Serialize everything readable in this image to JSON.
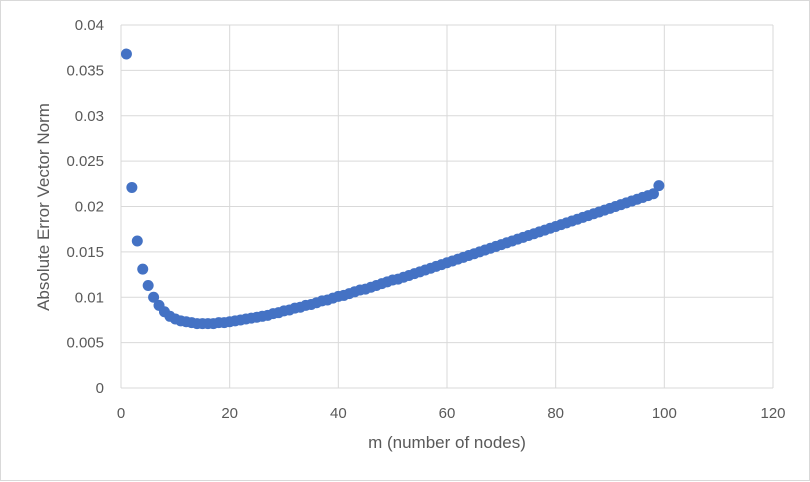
{
  "chart_data": {
    "type": "scatter",
    "title": "",
    "xlabel": "m (number of nodes)",
    "ylabel": "Absolute Error Vector Norm",
    "xlim": [
      0,
      120
    ],
    "ylim": [
      0,
      0.04
    ],
    "x_ticks": [
      "0",
      "20",
      "40",
      "60",
      "80",
      "100",
      "120"
    ],
    "y_ticks": [
      "0",
      "0.005",
      "0.01",
      "0.015",
      "0.02",
      "0.025",
      "0.03",
      "0.035",
      "0.04"
    ],
    "grid": true,
    "legend": "none",
    "marker_color": "#4472C4",
    "series": [
      {
        "x": [
          1,
          2,
          3,
          4,
          5,
          6,
          7,
          8,
          9,
          10,
          11,
          12,
          13,
          14,
          15,
          16,
          17,
          18,
          19,
          20,
          21,
          22,
          23,
          24,
          25,
          26,
          27,
          28,
          29,
          30,
          31,
          32,
          33,
          34,
          35,
          36,
          37,
          38,
          39,
          40,
          41,
          42,
          43,
          44,
          45,
          46,
          47,
          48,
          49,
          50,
          51,
          52,
          53,
          54,
          55,
          56,
          57,
          58,
          59,
          60,
          61,
          62,
          63,
          64,
          65,
          66,
          67,
          68,
          69,
          70,
          71,
          72,
          73,
          74,
          75,
          76,
          77,
          78,
          79,
          80,
          81,
          82,
          83,
          84,
          85,
          86,
          87,
          88,
          89,
          90,
          91,
          92,
          93,
          94,
          95,
          96,
          97,
          98,
          99
        ],
        "y": [
          0.0368,
          0.0221,
          0.0162,
          0.0131,
          0.0113,
          0.01,
          0.0091,
          0.0084,
          0.0079,
          0.0076,
          0.0074,
          0.0073,
          0.0072,
          0.0071,
          0.0071,
          0.0071,
          0.0071,
          0.0072,
          0.0072,
          0.0073,
          0.0074,
          0.0075,
          0.0076,
          0.0077,
          0.0078,
          0.0079,
          0.008,
          0.0082,
          0.0083,
          0.0085,
          0.0086,
          0.0088,
          0.0089,
          0.0091,
          0.0092,
          0.0094,
          0.0096,
          0.0097,
          0.0099,
          0.0101,
          0.0102,
          0.0104,
          0.0106,
          0.0108,
          0.0109,
          0.0111,
          0.0113,
          0.0115,
          0.0117,
          0.0119,
          0.012,
          0.0122,
          0.0124,
          0.0126,
          0.0128,
          0.013,
          0.0132,
          0.0134,
          0.0136,
          0.0138,
          0.014,
          0.0142,
          0.0144,
          0.0146,
          0.0148,
          0.015,
          0.0152,
          0.0154,
          0.0156,
          0.0158,
          0.016,
          0.0162,
          0.0164,
          0.0166,
          0.0168,
          0.017,
          0.0172,
          0.0174,
          0.0176,
          0.0178,
          0.018,
          0.0182,
          0.0184,
          0.0186,
          0.0188,
          0.019,
          0.0192,
          0.0194,
          0.0196,
          0.0198,
          0.02,
          0.0202,
          0.0204,
          0.0206,
          0.0208,
          0.021,
          0.0212,
          0.0214,
          0.0223
        ]
      }
    ]
  }
}
